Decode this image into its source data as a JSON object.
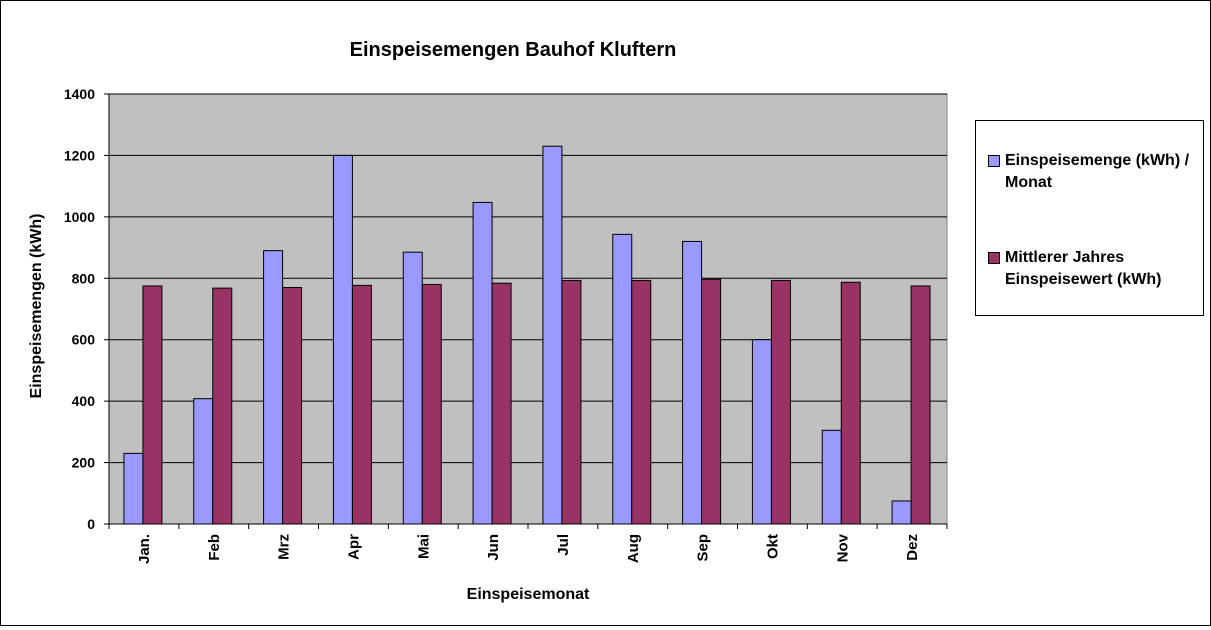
{
  "chart_data": {
    "type": "bar",
    "title": "Einspeisemengen Bauhof Kluftern",
    "xlabel": "Einspeisemonat",
    "ylabel": "Einspeisemengen (kWh)",
    "ylim": [
      0,
      1400
    ],
    "yticks": [
      "0",
      "200",
      "400",
      "600",
      "800",
      "1000",
      "1200",
      "1400"
    ],
    "categories": [
      "Jan.",
      "Feb",
      "Mrz",
      "Apr",
      "Mai",
      "Jun",
      "Jul",
      "Aug",
      "Sep",
      "Okt",
      "Nov",
      "Dez"
    ],
    "series": [
      {
        "name": "Einspeisemenge (kWh) / Monat",
        "color": "#9999ff",
        "values": [
          230,
          408,
          890,
          1200,
          885,
          1047,
          1230,
          943,
          920,
          600,
          305,
          75
        ]
      },
      {
        "name": "Mittlerer Jahres Einspeisewert (kWh)",
        "color": "#993366",
        "values": [
          775,
          768,
          770,
          777,
          780,
          784,
          793,
          793,
          797,
          793,
          787,
          775
        ]
      }
    ],
    "grid": true,
    "plot_background": "#c0c0c0",
    "legend_position": "right"
  }
}
